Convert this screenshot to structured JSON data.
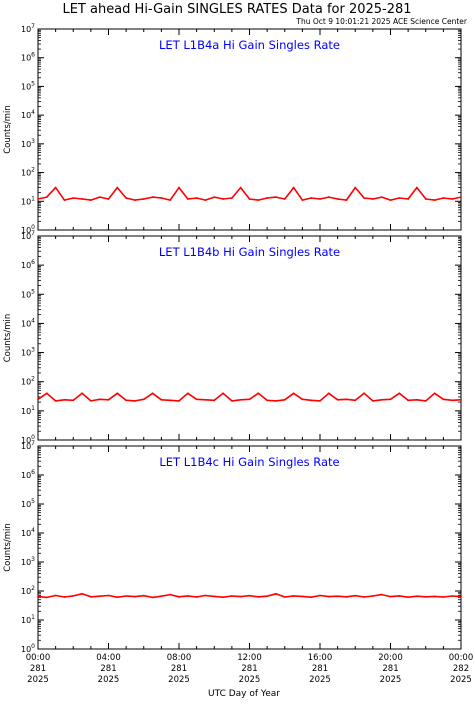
{
  "figure": {
    "title": "LET ahead Hi-Gain SINGLES RATES Data for 2025-281",
    "timestamp": "Thu Oct  9 10:01:21 2025 ACE Science Center",
    "xlabel": "UTC Day of Year",
    "ylabel": "Counts/min"
  },
  "x_ticks": [
    {
      "hour": 0,
      "time": "00:00",
      "doy": "281",
      "year": "2025"
    },
    {
      "hour": 4,
      "time": "04:00",
      "doy": "281",
      "year": "2025"
    },
    {
      "hour": 8,
      "time": "08:00",
      "doy": "281",
      "year": "2025"
    },
    {
      "hour": 12,
      "time": "12:00",
      "doy": "281",
      "year": "2025"
    },
    {
      "hour": 16,
      "time": "16:00",
      "doy": "281",
      "year": "2025"
    },
    {
      "hour": 20,
      "time": "20:00",
      "doy": "281",
      "year": "2025"
    },
    {
      "hour": 24,
      "time": "00:00",
      "doy": "282",
      "year": "2025"
    }
  ],
  "colors": {
    "series": "#ff0000",
    "panel_title": "#0000ff",
    "axis": "#000000"
  },
  "chart_data": [
    {
      "type": "line",
      "title": "LET L1B4a Hi Gain Singles Rate",
      "ylabel": "Counts/min",
      "yscale": "log",
      "ylim": [
        1,
        10000000
      ],
      "y_tick_exponents": [
        0,
        1,
        2,
        3,
        4,
        5,
        6,
        7
      ],
      "xlim_hours": [
        0,
        24
      ],
      "x": [
        0,
        0.5,
        1,
        1.5,
        2,
        2.5,
        3,
        3.5,
        4,
        4.5,
        5,
        5.5,
        6,
        6.5,
        7,
        7.5,
        8,
        8.5,
        9,
        9.5,
        10,
        10.5,
        11,
        11.5,
        12,
        12.5,
        13,
        13.5,
        14,
        14.5,
        15,
        15.5,
        16,
        16.5,
        17,
        17.5,
        18,
        18.5,
        19,
        19.5,
        20,
        20.5,
        21,
        21.5,
        22,
        22.5,
        23,
        23.5,
        24
      ],
      "series": [
        {
          "values": [
            12,
            14,
            30,
            11,
            13,
            12,
            11,
            14,
            12,
            30,
            13,
            11,
            12,
            14,
            13,
            11,
            30,
            12,
            13,
            11,
            14,
            12,
            13,
            30,
            12,
            11,
            13,
            14,
            12,
            30,
            11,
            13,
            12,
            14,
            12,
            11,
            30,
            13,
            12,
            14,
            11,
            13,
            12,
            30,
            12,
            11,
            13,
            12,
            14
          ]
        }
      ]
    },
    {
      "type": "line",
      "title": "LET L1B4b Hi Gain Singles Rate",
      "ylabel": "Counts/min",
      "yscale": "log",
      "ylim": [
        1,
        10000000
      ],
      "y_tick_exponents": [
        0,
        1,
        2,
        3,
        4,
        5,
        6,
        7
      ],
      "xlim_hours": [
        0,
        24
      ],
      "x": [
        0,
        0.5,
        1,
        1.5,
        2,
        2.5,
        3,
        3.5,
        4,
        4.5,
        5,
        5.5,
        6,
        6.5,
        7,
        7.5,
        8,
        8.5,
        9,
        9.5,
        10,
        10.5,
        11,
        11.5,
        12,
        12.5,
        13,
        13.5,
        14,
        14.5,
        15,
        15.5,
        16,
        16.5,
        17,
        17.5,
        18,
        18.5,
        19,
        19.5,
        20,
        20.5,
        21,
        21.5,
        22,
        22.5,
        23,
        23.5,
        24
      ],
      "series": [
        {
          "values": [
            25,
            40,
            22,
            24,
            23,
            40,
            22,
            25,
            24,
            40,
            23,
            22,
            25,
            40,
            24,
            23,
            22,
            40,
            25,
            24,
            23,
            40,
            22,
            24,
            25,
            40,
            23,
            22,
            24,
            40,
            25,
            23,
            22,
            40,
            24,
            25,
            23,
            40,
            22,
            24,
            25,
            40,
            23,
            24,
            22,
            40,
            25,
            23,
            24
          ]
        }
      ]
    },
    {
      "type": "line",
      "title": "LET L1B4c Hi Gain Singles Rate",
      "ylabel": "Counts/min",
      "yscale": "log",
      "ylim": [
        1,
        10000000
      ],
      "y_tick_exponents": [
        0,
        1,
        2,
        3,
        4,
        5,
        6,
        7
      ],
      "xlim_hours": [
        0,
        24
      ],
      "x": [
        0,
        0.5,
        1,
        1.5,
        2,
        2.5,
        3,
        3.5,
        4,
        4.5,
        5,
        5.5,
        6,
        6.5,
        7,
        7.5,
        8,
        8.5,
        9,
        9.5,
        10,
        10.5,
        11,
        11.5,
        12,
        12.5,
        13,
        13.5,
        14,
        14.5,
        15,
        15.5,
        16,
        16.5,
        17,
        17.5,
        18,
        18.5,
        19,
        19.5,
        20,
        20.5,
        21,
        21.5,
        22,
        22.5,
        23,
        23.5,
        24
      ],
      "series": [
        {
          "values": [
            65,
            60,
            70,
            62,
            68,
            80,
            63,
            66,
            70,
            61,
            67,
            64,
            69,
            60,
            66,
            75,
            63,
            68,
            62,
            70,
            65,
            61,
            67,
            64,
            69,
            63,
            66,
            80,
            62,
            68,
            65,
            61,
            70,
            64,
            66,
            63,
            69,
            62,
            67,
            75,
            64,
            68,
            61,
            66,
            63,
            65,
            62,
            67,
            64
          ]
        }
      ]
    }
  ]
}
